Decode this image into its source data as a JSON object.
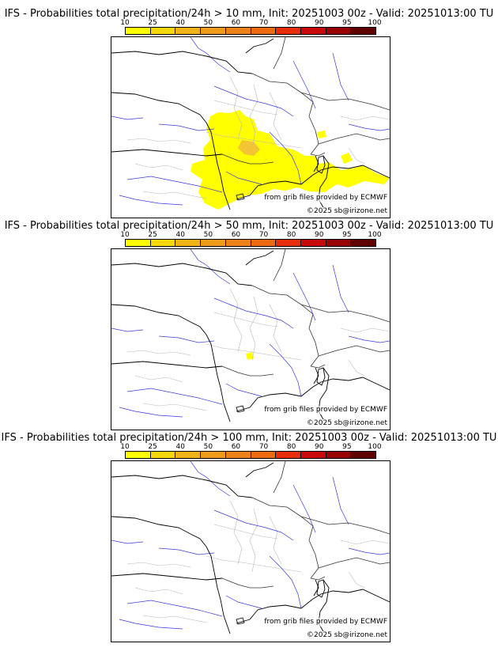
{
  "colorscale": {
    "labels": [
      "10",
      "25",
      "40",
      "50",
      "60",
      "70",
      "80",
      "90",
      "95",
      "100"
    ],
    "colors": [
      "#ffff00",
      "#f6d80c",
      "#f0b418",
      "#ee9b1c",
      "#ec8219",
      "#ee6a10",
      "#e62d0c",
      "#c80a0a",
      "#980404",
      "#600000"
    ]
  },
  "panels": [
    {
      "title": "IFS - Probabilities total precipitation/24h > 10 mm, Init: 20251003 00z - Valid: 20251013:00 TU",
      "source_credit": "from grib files provided by ECMWF",
      "copyright": "©2025 sb@irizone.net",
      "show_precip": "large"
    },
    {
      "title": "IFS - Probabilities total precipitation/24h > 50 mm, Init: 20251003 00z - Valid: 20251013:00 TU",
      "source_credit": "from grib files provided by ECMWF",
      "copyright": "©2025 sb@irizone.net",
      "show_precip": "small"
    },
    {
      "title": "IFS - Probabilities total precipitation/24h > 100 mm, Init: 20251003 00z - Valid: 20251013:00 TU",
      "source_credit": "from grib files provided by ECMWF",
      "copyright": "©2025 sb@irizone.net",
      "show_precip": "none"
    }
  ]
}
